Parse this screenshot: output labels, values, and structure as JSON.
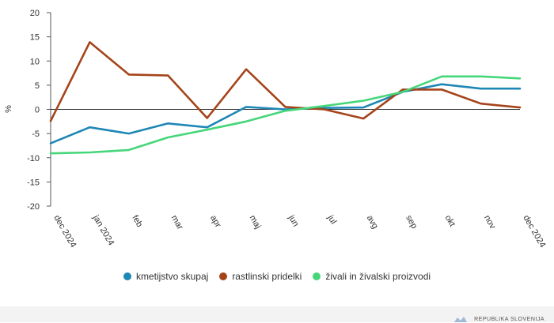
{
  "footer": {
    "logo_text": "REPUBLIKA SLOVENIJA"
  },
  "chart_data": {
    "type": "line",
    "ylabel": "%",
    "xlabel": "",
    "ylim": [
      -20,
      20
    ],
    "yticks": [
      20,
      15,
      10,
      5,
      0,
      -5,
      -10,
      -15,
      -20
    ],
    "categories": [
      "dec 2024",
      "jan 2024",
      "feb",
      "mar",
      "apr",
      "maj",
      "jun",
      "jul",
      "avg",
      "sep",
      "okt",
      "nov",
      "dec 2024"
    ],
    "series": [
      {
        "name": "kmetijstvo skupaj",
        "color": "#1f87b5",
        "values": [
          -7.0,
          -3.7,
          -5.0,
          -2.9,
          -3.7,
          0.5,
          0.0,
          0.3,
          0.4,
          3.6,
          5.2,
          4.3,
          4.3
        ]
      },
      {
        "name": "rastlinski pridelki",
        "color": "#a5441a",
        "values": [
          -2.4,
          13.9,
          7.2,
          7.0,
          -1.8,
          8.3,
          0.5,
          0.0,
          -1.9,
          4.1,
          4.1,
          1.2,
          0.4
        ]
      },
      {
        "name": "živali in živalski proizvodi",
        "color": "#46d67a",
        "values": [
          -9.1,
          -8.9,
          -8.4,
          -5.8,
          -4.2,
          -2.5,
          -0.3,
          0.7,
          1.8,
          3.6,
          6.8,
          6.8,
          6.4
        ]
      }
    ],
    "grid": false,
    "legend_position": "bottom"
  }
}
